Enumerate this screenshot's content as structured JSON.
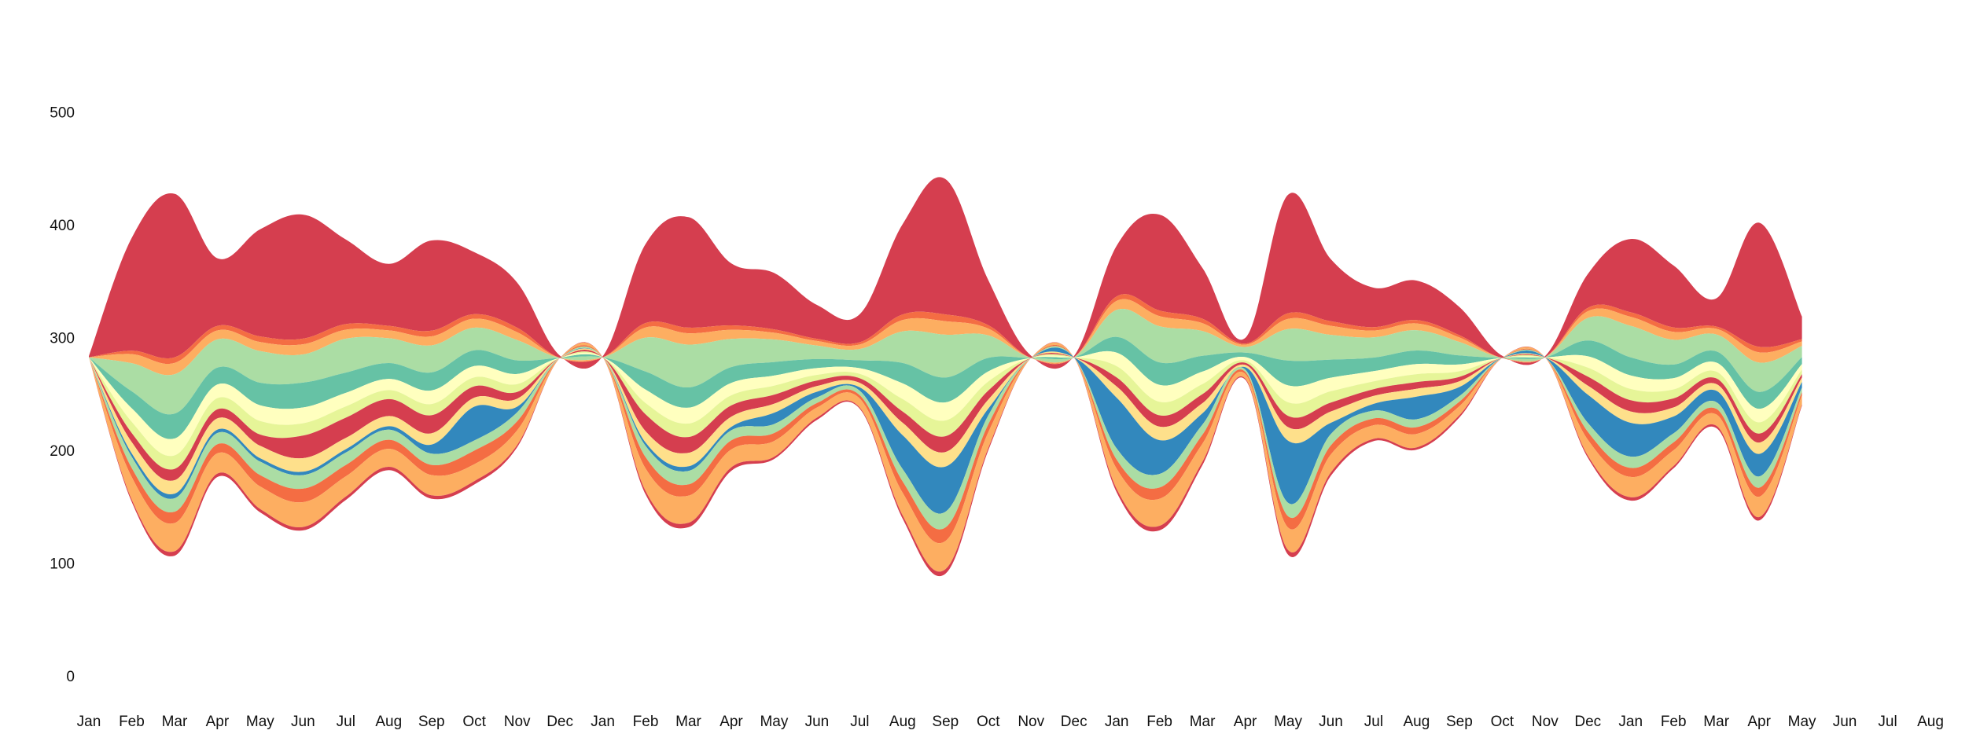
{
  "chart_data": {
    "type": "area",
    "subtype": "streamgraph",
    "title": "",
    "xlabel": "",
    "ylabel": "",
    "ylim": [
      0,
      560
    ],
    "yticks": [
      0,
      100,
      200,
      300,
      400,
      500
    ],
    "x_tick_labels": [
      "Jan",
      "Feb",
      "Mar",
      "Apr",
      "May",
      "Jun",
      "Jul",
      "Aug",
      "Sep",
      "Oct",
      "Nov",
      "Dec",
      "Jan",
      "Feb",
      "Mar",
      "Apr",
      "May",
      "Jun",
      "Jul",
      "Aug",
      "Sep",
      "Oct",
      "Nov",
      "Dec",
      "Jan",
      "Feb",
      "Mar",
      "Apr",
      "May",
      "Jun",
      "Jul",
      "Aug",
      "Sep",
      "Oct",
      "Nov",
      "Dec",
      "Jan",
      "Feb",
      "Mar",
      "Apr",
      "May",
      "Jun",
      "Jul",
      "Aug"
    ],
    "grid": false,
    "legend": "none",
    "baseline_center": 283,
    "colors": {
      "red": "#d53e4f",
      "orange": "#f46d43",
      "light_orange": "#fdae61",
      "light_yellow": "#fee08b",
      "cream": "#ffffbf",
      "yellow_green": "#e6f598",
      "light_green": "#abdda4",
      "teal": "#66c2a5",
      "blue": "#3288bd"
    },
    "series": [
      {
        "color": "red",
        "values": [
          1,
          100,
          145,
          60,
          95,
          110,
          75,
          55,
          80,
          55,
          40,
          2,
          1,
          70,
          98,
          55,
          50,
          30,
          25,
          80,
          120,
          40,
          2,
          1,
          45,
          85,
          45,
          5,
          105,
          55,
          35,
          35,
          25,
          2,
          1,
          30,
          65,
          55,
          25,
          110,
          20
        ]
      },
      {
        "color": "orange",
        "values": [
          0,
          3,
          5,
          4,
          5,
          5,
          5,
          4,
          5,
          4,
          4,
          0,
          0,
          4,
          5,
          4,
          3,
          2,
          2,
          5,
          6,
          3,
          0,
          0,
          4,
          5,
          4,
          1,
          5,
          4,
          3,
          3,
          2,
          0,
          0,
          3,
          4,
          4,
          2,
          5,
          2
        ]
      },
      {
        "color": "light_orange",
        "values": [
          0,
          8,
          10,
          8,
          8,
          9,
          8,
          7,
          8,
          8,
          7,
          0,
          0,
          9,
          10,
          8,
          6,
          4,
          4,
          10,
          12,
          6,
          0,
          0,
          8,
          9,
          7,
          2,
          9,
          8,
          6,
          6,
          4,
          0,
          0,
          6,
          8,
          7,
          5,
          9,
          4
        ]
      },
      {
        "color": "light_green",
        "values": [
          0,
          25,
          35,
          25,
          28,
          25,
          30,
          22,
          24,
          20,
          18,
          0,
          0,
          30,
          38,
          25,
          20,
          12,
          10,
          28,
          38,
          20,
          0,
          0,
          24,
          32,
          22,
          5,
          28,
          22,
          18,
          18,
          12,
          0,
          0,
          20,
          28,
          22,
          15,
          26,
          10
        ]
      },
      {
        "color": "teal",
        "values": [
          0,
          15,
          22,
          15,
          20,
          22,
          18,
          14,
          16,
          14,
          12,
          0,
          0,
          16,
          18,
          14,
          12,
          8,
          7,
          18,
          22,
          12,
          0,
          0,
          14,
          20,
          14,
          4,
          22,
          16,
          12,
          12,
          8,
          0,
          0,
          14,
          16,
          12,
          10,
          15,
          6
        ]
      },
      {
        "color": "cream",
        "values": [
          0,
          12,
          15,
          12,
          14,
          14,
          12,
          10,
          12,
          10,
          9,
          0,
          0,
          12,
          14,
          11,
          9,
          6,
          5,
          14,
          16,
          9,
          0,
          0,
          12,
          15,
          11,
          3,
          15,
          12,
          9,
          9,
          6,
          0,
          0,
          10,
          12,
          10,
          8,
          12,
          5
        ]
      },
      {
        "color": "yellow_green",
        "values": [
          0,
          10,
          12,
          10,
          12,
          11,
          10,
          8,
          10,
          8,
          7,
          0,
          0,
          10,
          12,
          9,
          8,
          5,
          4,
          11,
          14,
          8,
          0,
          0,
          10,
          12,
          9,
          2,
          12,
          10,
          7,
          7,
          5,
          0,
          0,
          8,
          10,
          8,
          6,
          10,
          4
        ]
      },
      {
        "color": "red",
        "values": [
          0,
          8,
          10,
          8,
          10,
          20,
          18,
          15,
          16,
          10,
          6,
          0,
          0,
          15,
          14,
          10,
          8,
          5,
          4,
          10,
          14,
          8,
          0,
          0,
          8,
          10,
          8,
          2,
          10,
          8,
          6,
          6,
          4,
          0,
          0,
          8,
          10,
          8,
          5,
          8,
          3
        ]
      },
      {
        "color": "light_yellow",
        "values": [
          0,
          10,
          12,
          10,
          11,
          12,
          10,
          9,
          10,
          8,
          7,
          0,
          0,
          10,
          12,
          9,
          8,
          5,
          4,
          11,
          13,
          8,
          0,
          0,
          10,
          12,
          9,
          2,
          12,
          10,
          7,
          7,
          5,
          0,
          0,
          8,
          10,
          8,
          6,
          10,
          4
        ]
      },
      {
        "color": "blue",
        "values": [
          0,
          3,
          4,
          3,
          3,
          3,
          3,
          3,
          8,
          30,
          5,
          0,
          0,
          3,
          4,
          3,
          10,
          5,
          3,
          30,
          40,
          6,
          0,
          0,
          45,
          30,
          10,
          2,
          55,
          10,
          6,
          20,
          8,
          0,
          0,
          25,
          30,
          15,
          10,
          20,
          5
        ]
      },
      {
        "color": "light_green",
        "values": [
          0,
          10,
          12,
          10,
          12,
          12,
          11,
          9,
          10,
          9,
          8,
          0,
          0,
          10,
          12,
          9,
          8,
          5,
          4,
          11,
          14,
          8,
          0,
          0,
          10,
          12,
          9,
          2,
          12,
          10,
          7,
          7,
          5,
          0,
          0,
          8,
          10,
          8,
          6,
          10,
          4
        ]
      },
      {
        "color": "orange",
        "values": [
          0,
          8,
          10,
          8,
          10,
          12,
          10,
          8,
          9,
          12,
          8,
          0,
          0,
          10,
          10,
          8,
          7,
          4,
          3,
          10,
          12,
          7,
          0,
          0,
          8,
          10,
          8,
          2,
          10,
          8,
          6,
          6,
          4,
          0,
          0,
          7,
          8,
          7,
          5,
          8,
          3
        ]
      },
      {
        "color": "light_orange",
        "values": [
          0,
          20,
          25,
          18,
          20,
          22,
          18,
          16,
          18,
          15,
          13,
          0,
          0,
          20,
          24,
          16,
          14,
          9,
          8,
          20,
          25,
          14,
          0,
          0,
          18,
          24,
          16,
          4,
          20,
          16,
          12,
          12,
          8,
          0,
          0,
          14,
          18,
          14,
          10,
          18,
          8
        ]
      },
      {
        "color": "red",
        "values": [
          0,
          2,
          4,
          3,
          3,
          3,
          3,
          3,
          3,
          3,
          2,
          0,
          0,
          3,
          4,
          3,
          2,
          2,
          1,
          3,
          4,
          2,
          0,
          0,
          3,
          4,
          3,
          1,
          4,
          3,
          2,
          2,
          2,
          0,
          0,
          2,
          3,
          2,
          2,
          3,
          1
        ]
      }
    ]
  }
}
